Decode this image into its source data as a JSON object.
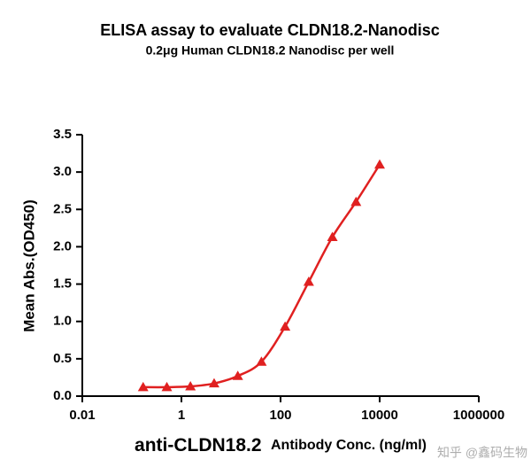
{
  "chart_data": {
    "type": "line",
    "title": "ELISA assay to evaluate CLDN18.2-Nanodisc",
    "subtitle": "0.2μg Human CLDN18.2 Nanodisc per well",
    "x_label": [
      "anti-CLDN18.2",
      "Antibody Conc. (ng/ml)"
    ],
    "y_label": "Mean Abs.(OD450)",
    "x_scale": "log",
    "x": [
      0.169,
      0.508,
      1.52,
      4.57,
      13.72,
      41.15,
      123.46,
      370.37,
      1111.11,
      3333.33,
      10000
    ],
    "series": [
      {
        "name": "anti-CLDN18.2",
        "color": "#e02020",
        "values": [
          0.12,
          0.12,
          0.13,
          0.17,
          0.27,
          0.46,
          0.93,
          1.53,
          2.13,
          2.6,
          3.1
        ]
      }
    ],
    "xlim": [
      0.01,
      1000000
    ],
    "xticks": [
      0.01,
      1,
      100,
      10000,
      1000000
    ],
    "ylim": [
      0,
      3.5
    ],
    "yticks": [
      {
        "value": 0,
        "label": "0.0"
      },
      {
        "value": 0.5,
        "label": "0.5"
      },
      {
        "value": 1,
        "label": "1.0"
      },
      {
        "value": 1.5,
        "label": "1.5"
      },
      {
        "value": 2,
        "label": "2.0"
      },
      {
        "value": 2.5,
        "label": "2.5"
      },
      {
        "value": 3,
        "label": "3.0"
      },
      {
        "value": 3.5,
        "label": "3.5"
      }
    ],
    "watermark": "知乎 @鑫码生物"
  }
}
